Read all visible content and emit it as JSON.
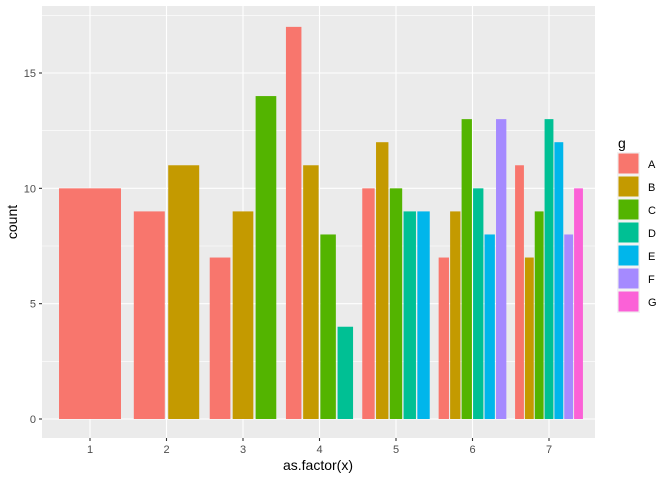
{
  "chart_data": {
    "type": "bar",
    "position": "dodge",
    "xlabel": "as.factor(x)",
    "ylabel": "count",
    "categories": [
      "1",
      "2",
      "3",
      "4",
      "5",
      "6",
      "7"
    ],
    "ylim": [
      0,
      17.85
    ],
    "y_ticks": [
      0,
      5,
      10,
      15
    ],
    "legend": {
      "title": "g",
      "position": "right"
    },
    "series": [
      {
        "name": "A",
        "color": "#F8766D",
        "values": [
          10,
          9,
          7,
          17,
          10,
          7,
          11
        ]
      },
      {
        "name": "B",
        "color": "#C49A00",
        "values": [
          0,
          11,
          9,
          11,
          12,
          9,
          7
        ]
      },
      {
        "name": "C",
        "color": "#53B400",
        "values": [
          0,
          0,
          14,
          8,
          10,
          13,
          9
        ]
      },
      {
        "name": "D",
        "color": "#00C094",
        "values": [
          0,
          0,
          0,
          4,
          9,
          10,
          13
        ]
      },
      {
        "name": "E",
        "color": "#00B6EB",
        "values": [
          0,
          0,
          0,
          0,
          9,
          8,
          12
        ]
      },
      {
        "name": "F",
        "color": "#A58AFF",
        "values": [
          0,
          0,
          0,
          0,
          0,
          13,
          8
        ]
      },
      {
        "name": "G",
        "color": "#FB61D7",
        "values": [
          0,
          0,
          0,
          0,
          0,
          0,
          10
        ]
      }
    ],
    "grid": true,
    "panel_background": "#EBEBEB",
    "grid_color": "#FFFFFF"
  }
}
